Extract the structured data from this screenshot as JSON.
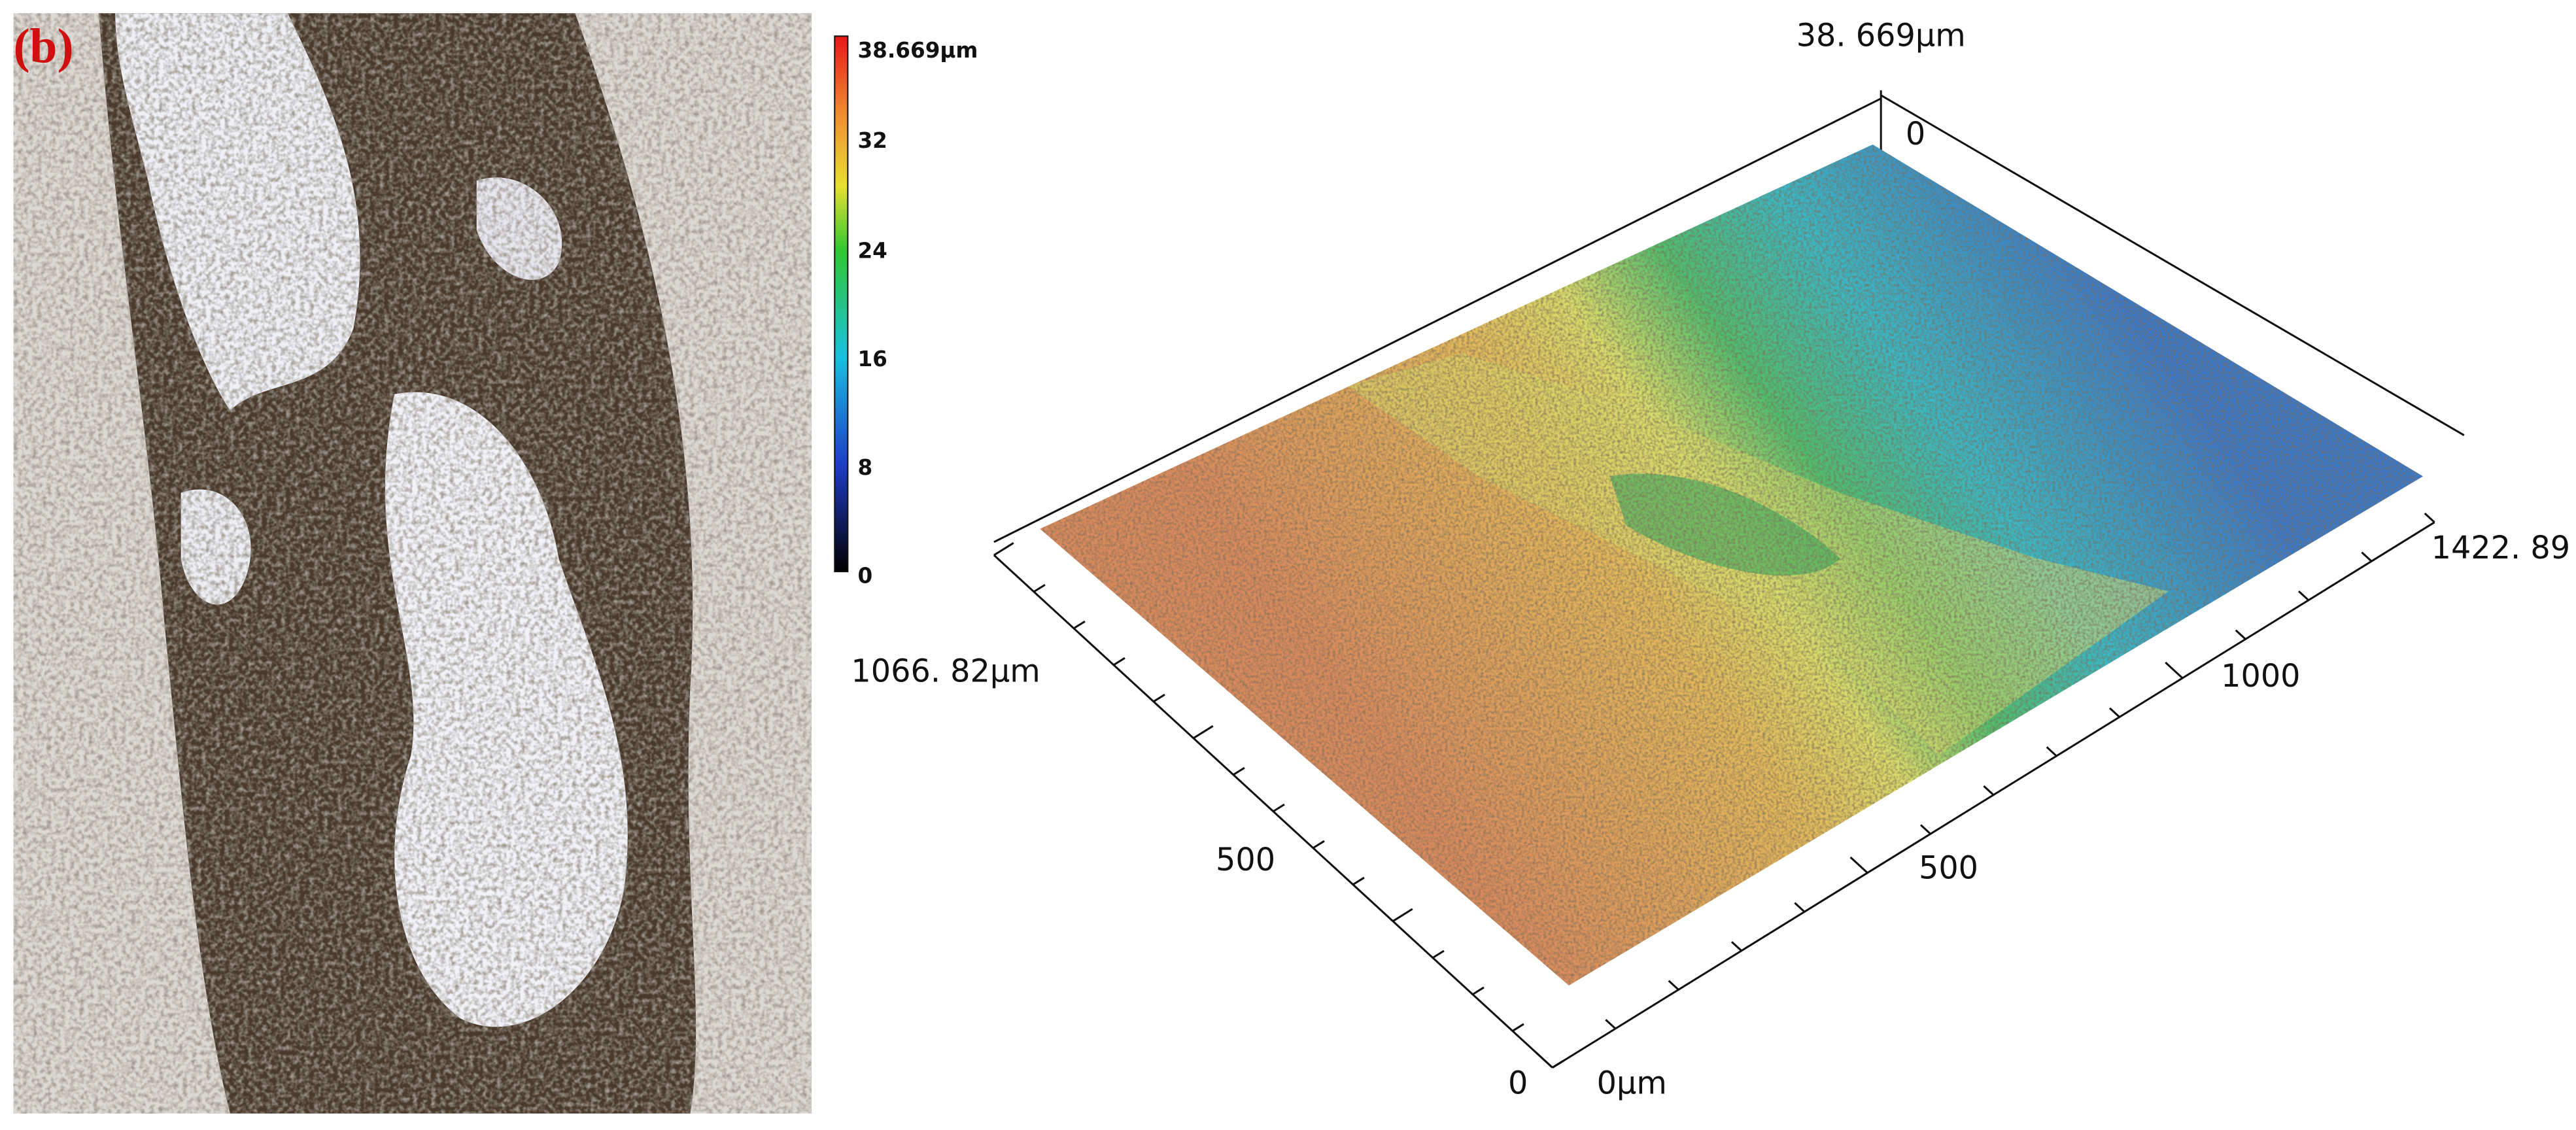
{
  "panel_label": "(b)",
  "colorbar": {
    "ticks": [
      "38.669μm",
      "32",
      "24",
      "16",
      "8",
      "0"
    ]
  },
  "surface_3d": {
    "z_max_label": "38. 669μm",
    "z_zero_label": "0",
    "y_axis": {
      "end_label": "1066. 82μm",
      "ticks": [
        "500",
        "0"
      ]
    },
    "x_axis": {
      "origin_label": "0μm",
      "ticks": [
        "500",
        "1000"
      ],
      "end_label": "1422. 89"
    }
  }
}
